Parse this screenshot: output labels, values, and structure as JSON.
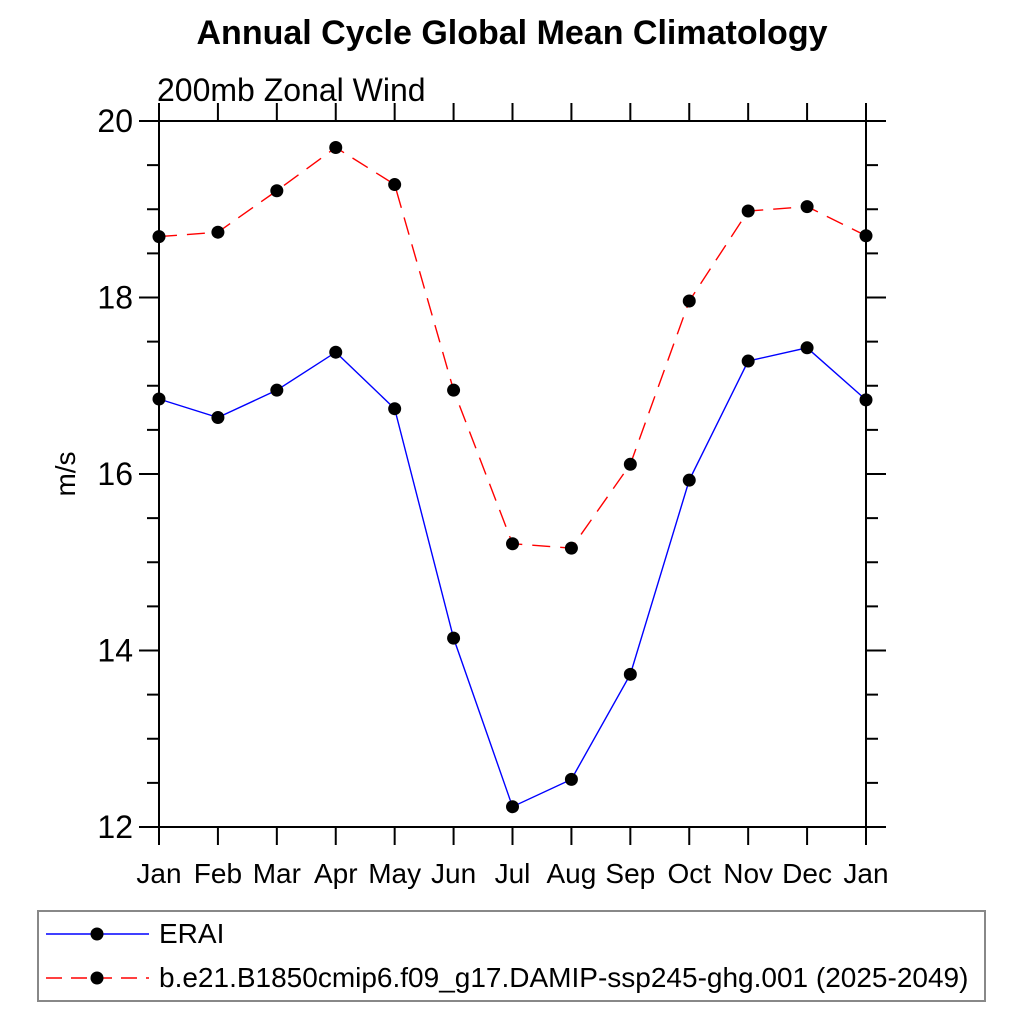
{
  "chart_data": {
    "type": "line",
    "title": "Annual Cycle Global Mean Climatology",
    "subtitle": "200mb Zonal Wind",
    "ylabel": "m/s",
    "categories": [
      "Jan",
      "Feb",
      "Mar",
      "Apr",
      "May",
      "Jun",
      "Jul",
      "Aug",
      "Sep",
      "Oct",
      "Nov",
      "Dec",
      "Jan"
    ],
    "ylim": [
      12,
      20
    ],
    "y_major_ticks": [
      20,
      18,
      16,
      14,
      12
    ],
    "y_minor_step": 0.5,
    "grid": false,
    "legend_position": "bottom-left-box",
    "axis_color": "#000000",
    "marker_color": "#000000",
    "series": [
      {
        "name": "ERAI",
        "color": "#0000ff",
        "style": "solid",
        "marker": "circle",
        "values": [
          16.85,
          16.64,
          16.95,
          17.38,
          16.74,
          14.14,
          12.23,
          12.54,
          13.73,
          15.93,
          17.28,
          17.43,
          16.84
        ]
      },
      {
        "name": "b.e21.B1850cmip6.f09_g17.DAMIP-ssp245-ghg.001 (2025-2049)",
        "color": "#ff0000",
        "style": "dashed",
        "marker": "circle",
        "values": [
          18.69,
          18.74,
          19.21,
          19.7,
          19.28,
          16.95,
          15.21,
          15.16,
          16.11,
          17.96,
          18.98,
          19.03,
          18.7
        ]
      }
    ]
  }
}
